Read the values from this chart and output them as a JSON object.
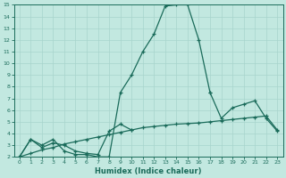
{
  "xlabel": "Humidex (Indice chaleur)",
  "bg_color": "#c2e8e0",
  "grid_color": "#a8d4cc",
  "line_color": "#1a6b5a",
  "xlim": [
    -0.5,
    23.5
  ],
  "ylim": [
    2,
    15
  ],
  "xticks": [
    0,
    1,
    2,
    3,
    4,
    5,
    6,
    7,
    8,
    9,
    10,
    11,
    12,
    13,
    14,
    15,
    16,
    17,
    18,
    19,
    20,
    21,
    22,
    23
  ],
  "yticks": [
    2,
    3,
    4,
    5,
    6,
    7,
    8,
    9,
    10,
    11,
    12,
    13,
    14,
    15
  ],
  "line1_x": [
    0,
    1,
    2,
    3,
    4,
    5,
    6,
    7,
    8,
    9,
    10,
    11,
    12,
    13,
    14,
    15,
    16,
    17
  ],
  "line1_y": [
    2.0,
    3.5,
    3.0,
    3.5,
    2.5,
    2.2,
    2.2,
    2.0,
    2.0,
    7.5,
    9.0,
    11.0,
    12.5,
    14.9,
    15.0,
    15.0,
    12.0,
    7.5
  ],
  "line2a_x": [
    0,
    1,
    2,
    3,
    4,
    5,
    6,
    7,
    8,
    9,
    10
  ],
  "line2a_y": [
    2.0,
    3.5,
    2.8,
    3.2,
    3.0,
    2.5,
    2.3,
    2.2,
    4.2,
    4.8,
    4.3
  ],
  "line2b_x": [
    17,
    18,
    19,
    20,
    21,
    22,
    23
  ],
  "line2b_y": [
    7.5,
    5.3,
    6.2,
    6.5,
    6.8,
    5.3,
    4.2
  ],
  "line3_x": [
    0,
    1,
    2,
    3,
    4,
    5,
    6,
    7,
    8,
    9,
    10,
    11,
    12,
    13,
    14,
    15,
    16,
    17,
    18,
    19,
    20,
    21,
    22,
    23
  ],
  "line3_y": [
    2.0,
    2.3,
    2.6,
    2.8,
    3.1,
    3.3,
    3.5,
    3.7,
    3.9,
    4.1,
    4.3,
    4.5,
    4.6,
    4.7,
    4.8,
    4.85,
    4.9,
    5.0,
    5.1,
    5.2,
    5.3,
    5.4,
    5.5,
    4.3
  ]
}
